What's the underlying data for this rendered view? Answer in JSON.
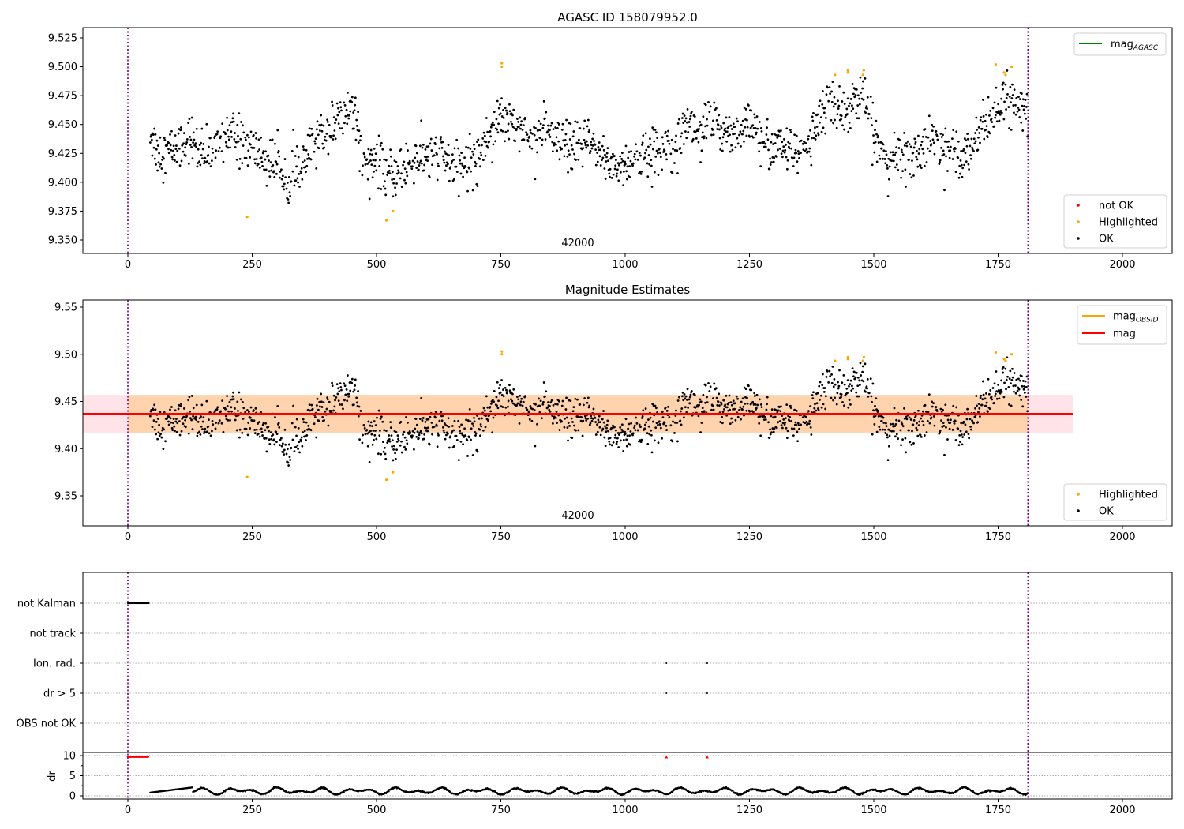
{
  "chart_data": [
    {
      "type": "scatter",
      "title": "AGASC ID 158079952.0",
      "annotation": "42000",
      "xlim": [
        -90,
        2100
      ],
      "ylim": [
        9.338,
        9.535
      ],
      "xticks": [
        0,
        250,
        500,
        750,
        1000,
        1250,
        1500,
        1750,
        2000
      ],
      "yticks": [
        "9.350",
        "9.375",
        "9.400",
        "9.425",
        "9.450",
        "9.475",
        "9.500",
        "9.525"
      ],
      "vlines": [
        0,
        1810
      ],
      "legend_top": [
        {
          "label": "mag",
          "sub": "AGASC",
          "color": "#008000"
        }
      ],
      "legend_bottom": [
        {
          "label": "not OK",
          "color": "#ff0000"
        },
        {
          "label": "Highlighted",
          "color": "#ffa500"
        },
        {
          "label": "OK",
          "color": "#000000"
        }
      ],
      "trend_x": [
        45,
        60,
        100,
        125,
        150,
        175,
        200,
        225,
        250,
        275,
        300,
        325,
        350,
        375,
        400,
        425,
        450,
        458,
        470,
        500,
        525,
        550,
        575,
        600,
        625,
        650,
        675,
        700,
        725,
        750,
        775,
        800,
        825,
        850,
        875,
        900,
        925,
        950,
        975,
        1000,
        1025,
        1050,
        1075,
        1100,
        1125,
        1150,
        1175,
        1200,
        1225,
        1250,
        1275,
        1300,
        1325,
        1350,
        1375,
        1400,
        1425,
        1450,
        1475,
        1490,
        1500,
        1525,
        1550,
        1575,
        1600,
        1625,
        1650,
        1675,
        1700,
        1725,
        1750,
        1775,
        1800,
        1810
      ],
      "trend_y": [
        9.445,
        9.425,
        9.43,
        9.44,
        9.42,
        9.43,
        9.445,
        9.435,
        9.43,
        9.42,
        9.415,
        9.405,
        9.41,
        9.435,
        9.445,
        9.455,
        9.465,
        9.46,
        9.425,
        9.415,
        9.405,
        9.41,
        9.42,
        9.42,
        9.425,
        9.415,
        9.415,
        9.42,
        9.44,
        9.46,
        9.455,
        9.44,
        9.445,
        9.44,
        9.43,
        9.43,
        9.435,
        9.425,
        9.415,
        9.415,
        9.42,
        9.425,
        9.43,
        9.44,
        9.45,
        9.445,
        9.45,
        9.445,
        9.445,
        9.45,
        9.435,
        9.43,
        9.43,
        9.425,
        9.44,
        9.465,
        9.465,
        9.465,
        9.475,
        9.46,
        9.44,
        9.42,
        9.42,
        9.425,
        9.43,
        9.435,
        9.43,
        9.425,
        9.435,
        9.45,
        9.465,
        9.47,
        9.465,
        9.46
      ],
      "ok_noise_sd": 0.012,
      "highlighted": [
        [
          240,
          9.37
        ],
        [
          520,
          9.367
        ],
        [
          533,
          9.375
        ],
        [
          752,
          9.503
        ],
        [
          752,
          9.5
        ],
        [
          1422,
          9.493
        ],
        [
          1448,
          9.495
        ],
        [
          1448,
          9.497
        ],
        [
          1478,
          9.493
        ],
        [
          1480,
          9.497
        ],
        [
          1745,
          9.502
        ],
        [
          1762,
          9.495
        ],
        [
          1765,
          9.493
        ],
        [
          1777,
          9.5
        ]
      ]
    },
    {
      "type": "scatter",
      "title": "Magnitude Estimates",
      "annotation": "42000",
      "xlim": [
        -90,
        2100
      ],
      "ylim": [
        9.318,
        9.558
      ],
      "xticks": [
        0,
        250,
        500,
        750,
        1000,
        1250,
        1500,
        1750,
        2000
      ],
      "yticks": [
        "9.35",
        "9.40",
        "9.45",
        "9.50",
        "9.55"
      ],
      "mag_mean": 9.437,
      "mag_band": [
        9.417,
        9.457
      ],
      "band_x_end": 1900,
      "legend_top": [
        {
          "label": "mag",
          "sub": "OBSID",
          "color": "#ffa500"
        },
        {
          "label": "mag",
          "sub": "",
          "color": "#ff0000"
        }
      ],
      "legend_bottom": [
        {
          "label": "Highlighted",
          "color": "#ffa500"
        },
        {
          "label": "OK",
          "color": "#000000"
        }
      ]
    },
    {
      "type": "scatter",
      "title": "",
      "categories": [
        "not Kalman",
        "not track",
        "Ion. rad.",
        "dr > 5",
        "OBS not OK"
      ],
      "flags": {
        "not Kalman": [
          0,
          42
        ],
        "Ion. rad.": [
          1083,
          1165
        ],
        "dr > 5": [
          1083,
          1165
        ]
      },
      "dr_ylabel": "dr",
      "dr_yticks": [
        "0",
        "5",
        "10"
      ],
      "dr_clipped_red": {
        "range": [
          0,
          42
        ],
        "points": [
          1083,
          1165
        ],
        "value": 10
      },
      "dr_typical_range": [
        0.2,
        2.5
      ],
      "xticks": [
        0,
        250,
        500,
        750,
        1000,
        1250,
        1500,
        1750,
        2000
      ]
    }
  ]
}
